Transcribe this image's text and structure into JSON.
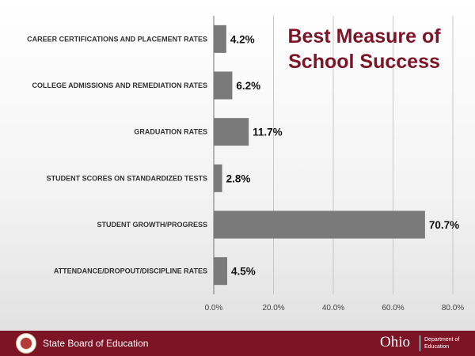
{
  "slide": {
    "title": "Best Measure of School Success"
  },
  "footer": {
    "organization": "State Board of Education",
    "logo_text": "Ohio",
    "logo_subtext": "Department of Education"
  },
  "colors": {
    "accent": "#7d1426",
    "bar": "#7a7a7a",
    "gridline": "#c8c8c8"
  },
  "chart_data": {
    "type": "bar",
    "orientation": "horizontal",
    "categories": [
      "CAREER CERTIFICATIONS AND PLACEMENT RATES",
      "COLLEGE ADMISSIONS AND REMEDIATION RATES",
      "GRADUATION RATES",
      "STUDENT SCORES ON STANDARDIZED TESTS",
      "STUDENT GROWTH/PROGRESS",
      "ATTENDANCE/DROPOUT/DISCIPLINE RATES"
    ],
    "values": [
      4.2,
      6.2,
      11.7,
      2.8,
      70.7,
      4.5
    ],
    "value_labels": [
      "4.2%",
      "6.2%",
      "11.7%",
      "2.8%",
      "70.7%",
      "4.5%"
    ],
    "xlim": [
      0,
      80
    ],
    "xticks": [
      0,
      20,
      40,
      60,
      80
    ],
    "xtick_labels": [
      "0.0%",
      "20.0%",
      "40.0%",
      "60.0%",
      "80.0%"
    ],
    "grid": true,
    "legend": "none"
  }
}
